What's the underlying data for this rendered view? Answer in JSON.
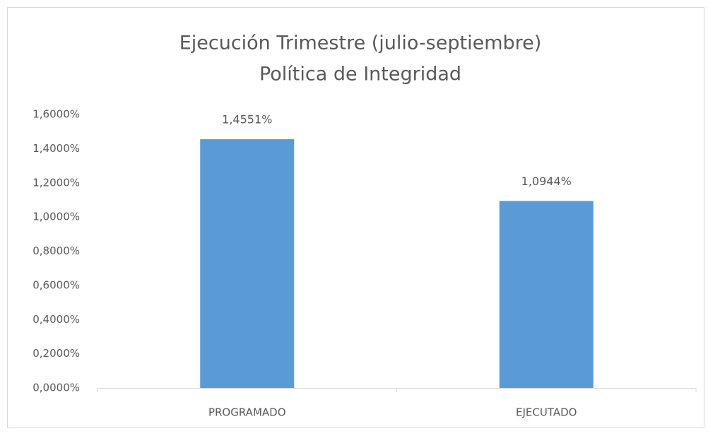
{
  "chart_data": {
    "type": "bar",
    "title": "Ejecución Trimestre (julio-septiembre)",
    "subtitle": "Política de Integridad",
    "categories": [
      "PROGRAMADO",
      "EJECUTADO"
    ],
    "values": [
      1.4551,
      1.0944
    ],
    "value_labels": [
      "1,4551%",
      "1,0944%"
    ],
    "color": "#5b9bd5",
    "ylim": [
      0,
      1.6
    ],
    "yticks": [
      {
        "value": 0,
        "label": "0,0000%"
      },
      {
        "value": 0.2,
        "label": "0,2000%"
      },
      {
        "value": 0.4,
        "label": "0,4000%"
      },
      {
        "value": 0.6,
        "label": "0,6000%"
      },
      {
        "value": 0.8,
        "label": "0,8000%"
      },
      {
        "value": 1.0,
        "label": "1,0000%"
      },
      {
        "value": 1.2,
        "label": "1,2000%"
      },
      {
        "value": 1.4,
        "label": "1,4000%"
      },
      {
        "value": 1.6,
        "label": "1,6000%"
      }
    ],
    "grid": false
  }
}
